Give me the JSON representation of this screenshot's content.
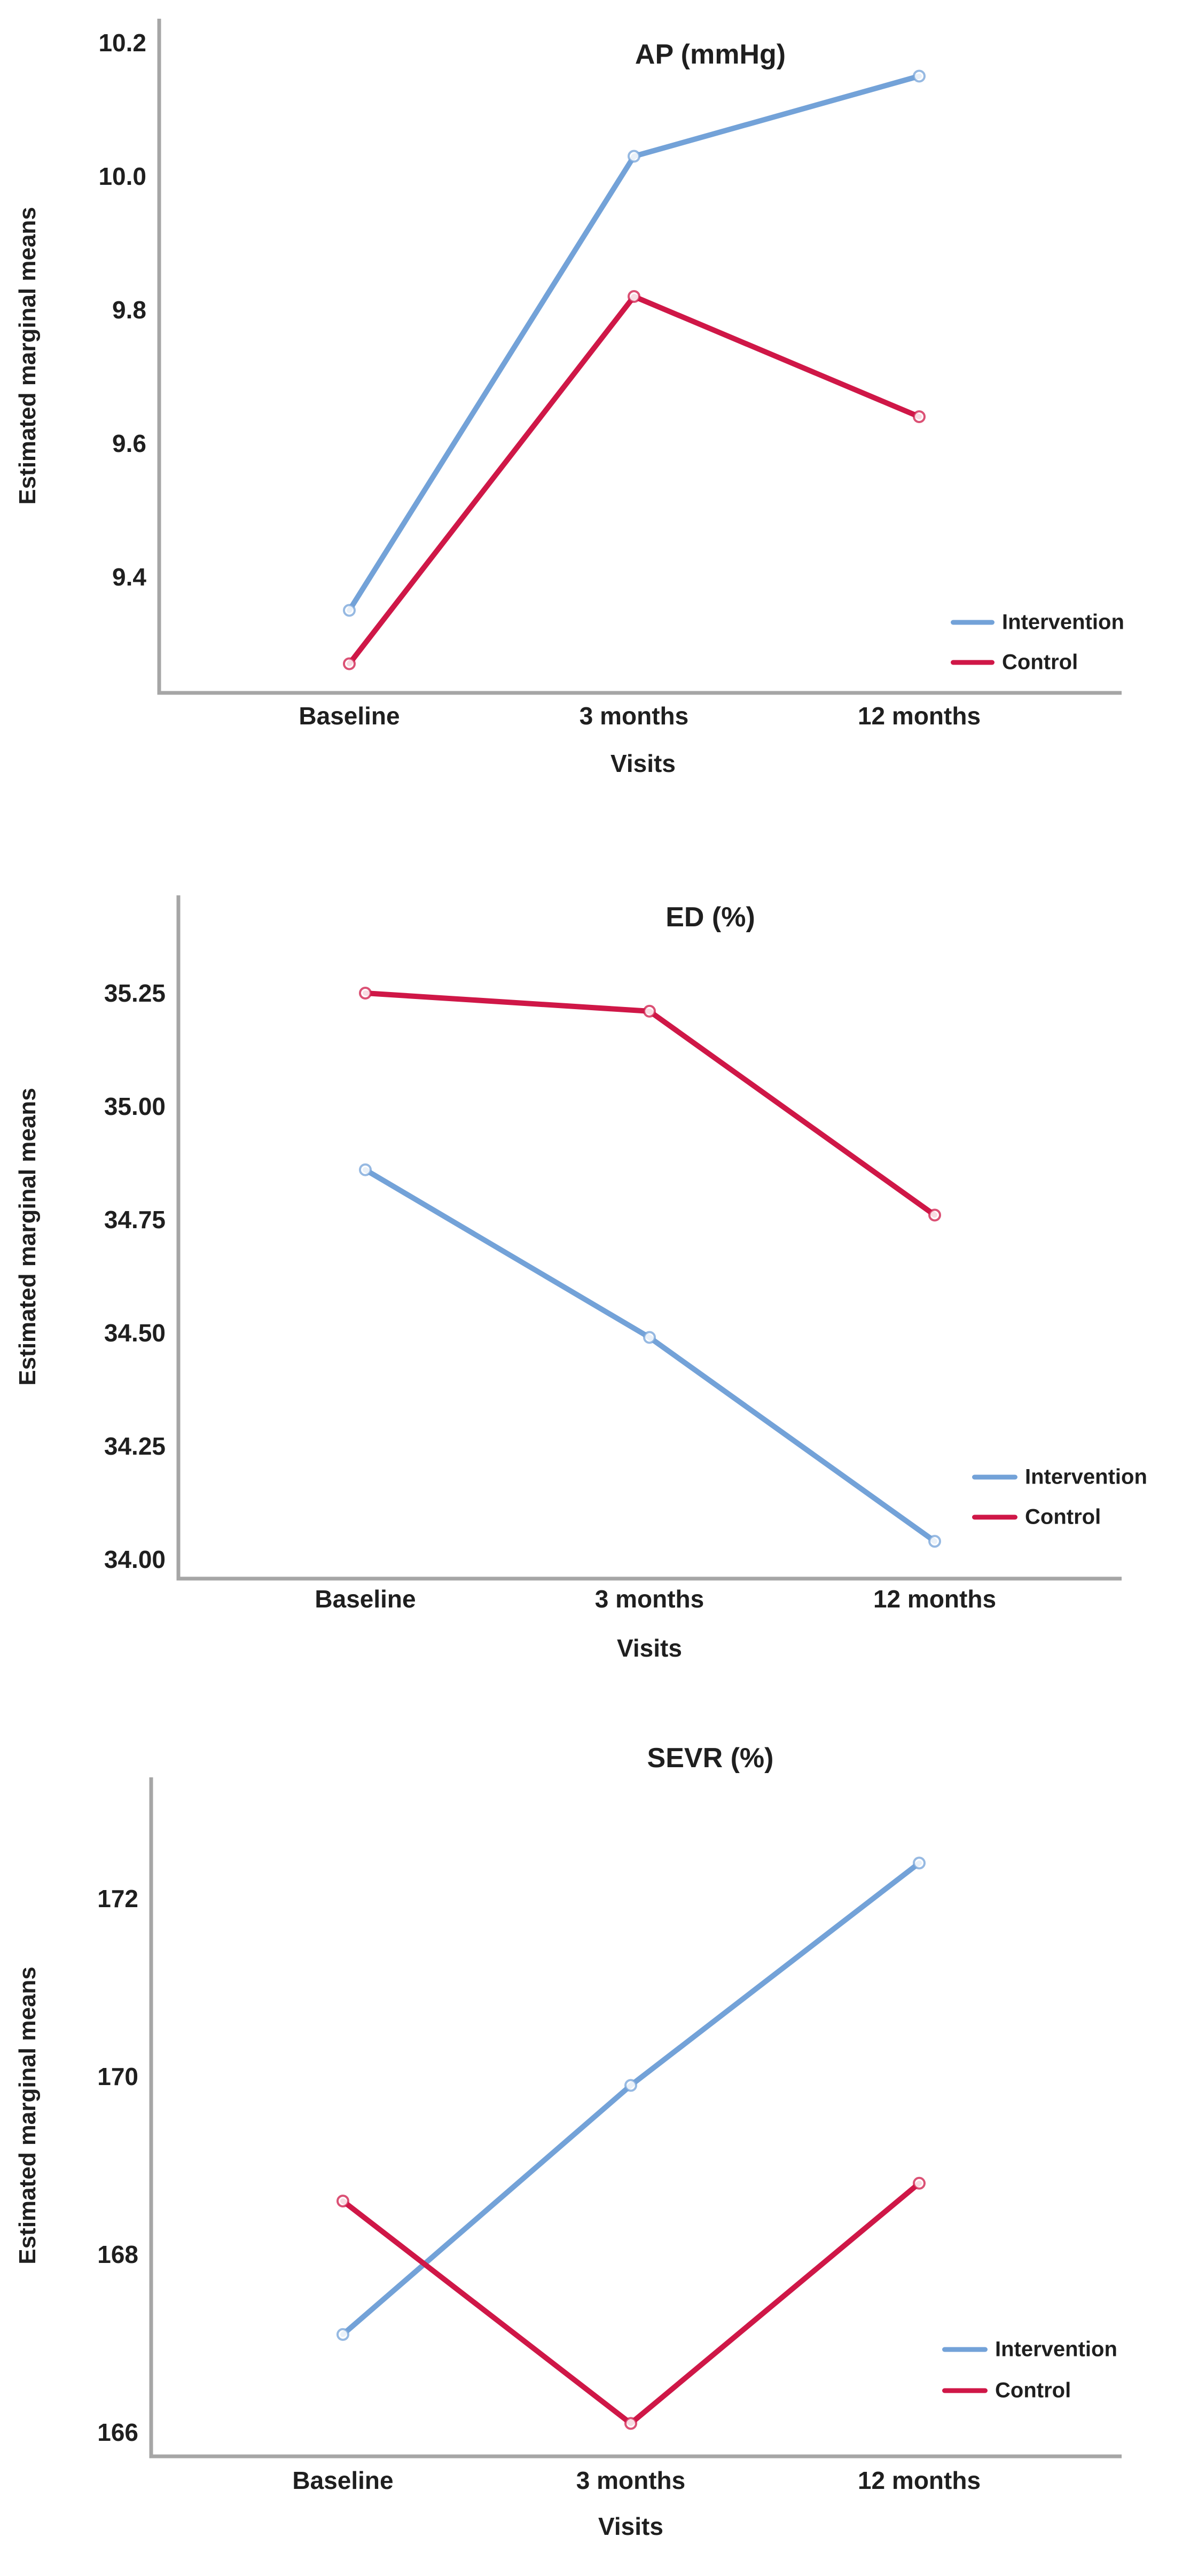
{
  "shared": {
    "y_axis_title": "Estimated marginal means",
    "x_axis_title": "Visits"
  },
  "colors": {
    "intervention": "#73a2d8",
    "control": "#cf1747",
    "axis_line": "#a6a6a6"
  },
  "chart_data": [
    {
      "type": "line",
      "title": "AP (mmHg)",
      "xlabel": "Visits",
      "ylabel": "Estimated marginal means",
      "categories": [
        "Baseline",
        "3 months",
        "12 months"
      ],
      "yticks": [
        "10.2",
        "10.0",
        "9.8",
        "9.6",
        "9.4"
      ],
      "ylim": [
        9.22,
        10.24
      ],
      "grid": false,
      "legend_position": "bottom-right",
      "series": [
        {
          "name": "Intervention",
          "color": "#73a2d8",
          "values": [
            9.35,
            10.03,
            10.15
          ]
        },
        {
          "name": "Control",
          "color": "#cf1747",
          "values": [
            9.27,
            9.82,
            9.64
          ]
        }
      ]
    },
    {
      "type": "line",
      "title": "ED (%)",
      "xlabel": "Visits",
      "ylabel": "Estimated marginal means",
      "categories": [
        "Baseline",
        "3 months",
        "12 months"
      ],
      "yticks": [
        "35.25",
        "35.00",
        "34.75",
        "34.50",
        "34.25",
        "34.00"
      ],
      "ylim": [
        33.95,
        35.37
      ],
      "grid": false,
      "legend_position": "bottom-right",
      "series": [
        {
          "name": "Intervention",
          "color": "#73a2d8",
          "values": [
            34.86,
            34.49,
            34.04
          ]
        },
        {
          "name": "Control",
          "color": "#cf1747",
          "values": [
            35.25,
            35.21,
            34.76
          ]
        }
      ]
    },
    {
      "type": "line",
      "title": "SEVR (%)",
      "xlabel": "Visits",
      "ylabel": "Estimated marginal means",
      "categories": [
        "Baseline",
        "3 months",
        "12 months"
      ],
      "yticks": [
        "172",
        "170",
        "168",
        "166"
      ],
      "ylim": [
        165.6,
        172.9
      ],
      "grid": false,
      "legend_position": "bottom-right",
      "series": [
        {
          "name": "Intervention",
          "color": "#73a2d8",
          "values": [
            167.1,
            169.9,
            172.4
          ]
        },
        {
          "name": "Control",
          "color": "#cf1747",
          "values": [
            168.6,
            166.1,
            168.8
          ]
        }
      ]
    }
  ]
}
